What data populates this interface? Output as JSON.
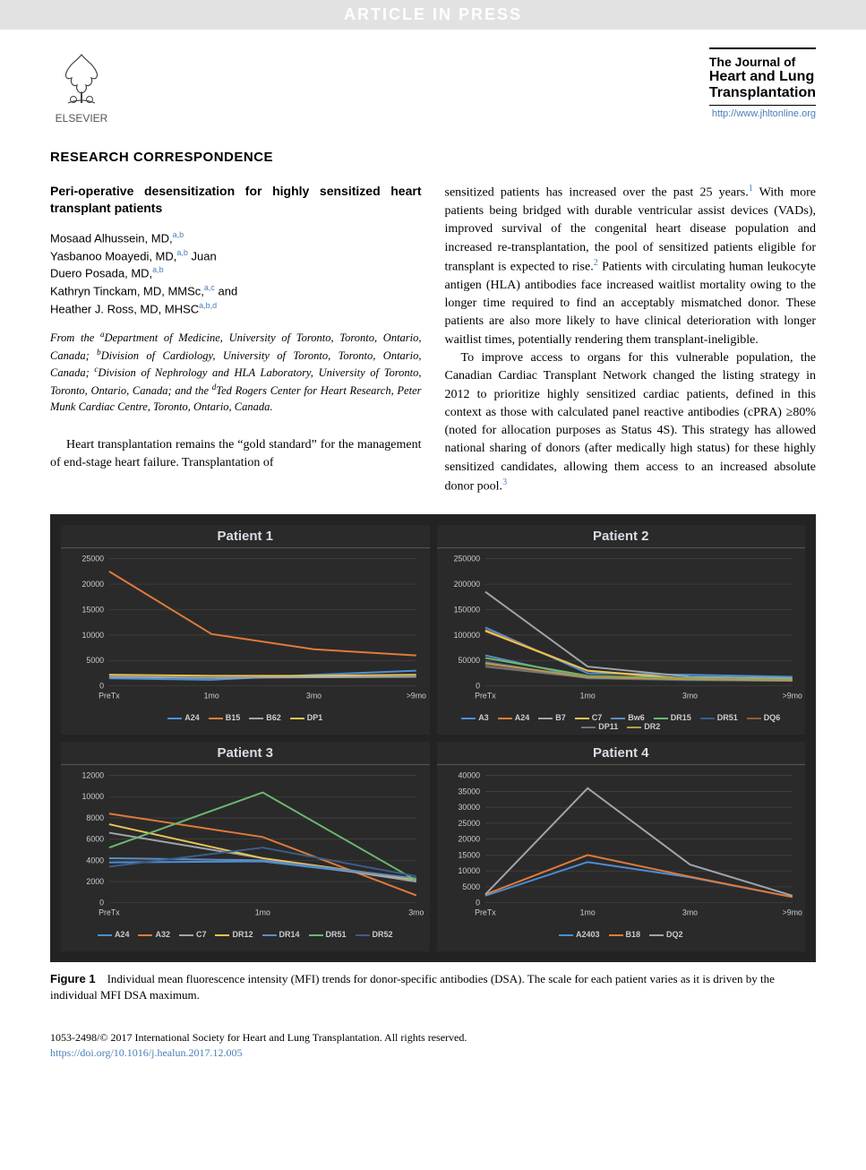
{
  "banner": "ARTICLE IN PRESS",
  "publisher_logo_text": "ELSEVIER",
  "journal": {
    "line1": "The Journal of",
    "line2": "Heart and Lung",
    "line3": "Transplantation",
    "url": "http://www.jhltonline.org"
  },
  "section_heading": "RESEARCH CORRESPONDENCE",
  "title": "Peri-operative desensitization for highly sensitized heart transplant patients",
  "authors": [
    {
      "name": "Mosaad Alhussein, MD,",
      "sup": "a,b"
    },
    {
      "name": "Yasbanoo Moayedi, MD,",
      "sup": "a,b",
      "suffix": " Juan"
    },
    {
      "name": "Duero Posada, MD,",
      "sup": "a,b"
    },
    {
      "name": "Kathryn Tinckam, MD, MMSc,",
      "sup": "a,c",
      "suffix": " and"
    },
    {
      "name": "Heather J. Ross, MD, MHSC",
      "sup": "a,b,d"
    }
  ],
  "affiliations": "From the <sup>a</sup>Department of Medicine, University of Toronto, Toronto, Ontario, Canada; <sup>b</sup>Division of Cardiology, University of Toronto, Toronto, Ontario, Canada; <sup>c</sup>Division of Nephrology and HLA Laboratory, University of Toronto, Toronto, Ontario, Canada; and the <sup>d</sup>Ted Rogers Center for Heart Research, Peter Munk Cardiac Centre, Toronto, Ontario, Canada.",
  "body": {
    "p1": "Heart transplantation remains the “gold standard” for the management of end-stage heart failure. Transplantation of",
    "p2a": "sensitized patients has increased over the past 25 years.",
    "p2b": " With more patients being bridged with durable ventricular assist devices (VADs), improved survival of the congenital heart disease population and increased re-transplantation, the pool of sensitized patients eligible for transplant is expected to rise.",
    "p2c": " Patients with circulating human leukocyte antigen (HLA) antibodies face increased waitlist mortality owing to the longer time required to find an acceptably mismatched donor. These patients are also more likely to have clinical deterioration with longer waitlist times, potentially rendering them transplant-ineligible.",
    "p3a": "To improve access to organs for this vulnerable population, the Canadian Cardiac Transplant Network changed the listing strategy in 2012 to prioritize highly sensitized cardiac patients, defined in this context as those with calculated panel reactive antibodies (cPRA) ≥80% (noted for allocation purposes as Status 4S). This strategy has allowed national sharing of donors (after medically high status) for these highly sensitized candidates, allowing them access to an increased absolute donor pool.",
    "ref1": "1",
    "ref2": "2",
    "ref3": "3"
  },
  "figure": {
    "background": "#232323",
    "panel_bg": "#2a2a2a",
    "grid_color": "#454545",
    "text_color": "#c8cdd4",
    "title_fontsize": 15,
    "axis_fontsize": 9,
    "legend_fontsize": 9,
    "line_width": 2,
    "panels": [
      {
        "title": "Patient 1",
        "ylim": [
          0,
          25000
        ],
        "ytick_step": 5000,
        "x_labels": [
          "PreTx",
          "1mo",
          "3mo",
          ">9mo"
        ],
        "series": [
          {
            "label": "A24",
            "color": "#4a8fd6",
            "values": [
              1500,
              1200,
              2200,
              3000
            ]
          },
          {
            "label": "B15",
            "color": "#e07a3a",
            "values": [
              22500,
              10200,
              7200,
              6000
            ]
          },
          {
            "label": "B62",
            "color": "#a0a5ac",
            "values": [
              1800,
              1600,
              1700,
              1800
            ]
          },
          {
            "label": "DP1",
            "color": "#e6c455",
            "values": [
              2200,
              2000,
              2000,
              2200
            ]
          }
        ]
      },
      {
        "title": "Patient 2",
        "ylim": [
          0,
          250000
        ],
        "ytick_step": 50000,
        "x_labels": [
          "PreTx",
          "1mo",
          "3mo",
          ">9mo"
        ],
        "series": [
          {
            "label": "A3",
            "color": "#4a8fd6",
            "values": [
              115000,
              25000,
              22000,
              18000
            ]
          },
          {
            "label": "A24",
            "color": "#e07a3a",
            "values": [
              110000,
              30000,
              12000,
              10000
            ]
          },
          {
            "label": "B7",
            "color": "#a0a5ac",
            "values": [
              185000,
              38000,
              18000,
              15000
            ]
          },
          {
            "label": "C7",
            "color": "#e6c455",
            "values": [
              108000,
              30000,
              14000,
              12000
            ]
          },
          {
            "label": "Bw6",
            "color": "#5f8cc0",
            "values": [
              60000,
              15000,
              12000,
              11000
            ]
          },
          {
            "label": "DR15",
            "color": "#6cb872",
            "values": [
              55000,
              20000,
              15000,
              13000
            ]
          },
          {
            "label": "DR51",
            "color": "#3b5d8a",
            "values": [
              48000,
              15000,
              11000,
              10000
            ]
          },
          {
            "label": "DQ6",
            "color": "#8a5d3b",
            "values": [
              42000,
              18000,
              13000,
              11000
            ]
          },
          {
            "label": "DP11",
            "color": "#707580",
            "values": [
              38000,
              16000,
              12000,
              10000
            ]
          },
          {
            "label": "DR2",
            "color": "#b89a4a",
            "values": [
              45000,
              17000,
              13000,
              11000
            ]
          }
        ]
      },
      {
        "title": "Patient 3",
        "ylim": [
          0,
          12000
        ],
        "ytick_step": 2000,
        "x_labels": [
          "PreTx",
          "1mo",
          "3mo"
        ],
        "series": [
          {
            "label": "A24",
            "color": "#4a8fd6",
            "values": [
              3800,
              3900,
              2200
            ]
          },
          {
            "label": "A32",
            "color": "#e07a3a",
            "values": [
              8400,
              6200,
              700
            ]
          },
          {
            "label": "C7",
            "color": "#a0a5ac",
            "values": [
              6600,
              4200,
              2000
            ]
          },
          {
            "label": "DR12",
            "color": "#e6c455",
            "values": [
              7400,
              4200,
              2200
            ]
          },
          {
            "label": "DR14",
            "color": "#5f8cc0",
            "values": [
              4200,
              4000,
              2300
            ]
          },
          {
            "label": "DR51",
            "color": "#6cb872",
            "values": [
              5200,
              10400,
              2100
            ]
          },
          {
            "label": "DR52",
            "color": "#3b5d8a",
            "values": [
              3400,
              5200,
              2500
            ]
          }
        ]
      },
      {
        "title": "Patient 4",
        "ylim": [
          0,
          40000
        ],
        "ytick_step": 5000,
        "x_labels": [
          "PreTx",
          "1mo",
          "3mo",
          ">9mo"
        ],
        "series": [
          {
            "label": "A2403",
            "color": "#4a8fd6",
            "values": [
              2200,
              12800,
              8000,
              1800
            ]
          },
          {
            "label": "B18",
            "color": "#e07a3a",
            "values": [
              2600,
              15000,
              8200,
              1800
            ]
          },
          {
            "label": "DQ2",
            "color": "#a0a5ac",
            "values": [
              2600,
              36000,
              12000,
              2200
            ]
          }
        ]
      }
    ],
    "caption_label": "Figure 1",
    "caption_text": "Individual mean fluorescence intensity (MFI) trends for donor-specific antibodies (DSA). The scale for each patient varies as it is driven by the individual MFI DSA maximum."
  },
  "footer": {
    "copyright": "1053-2498/© 2017 International Society for Heart and Lung Transplantation. All rights reserved.",
    "doi": "https://doi.org/10.1016/j.healun.2017.12.005"
  }
}
